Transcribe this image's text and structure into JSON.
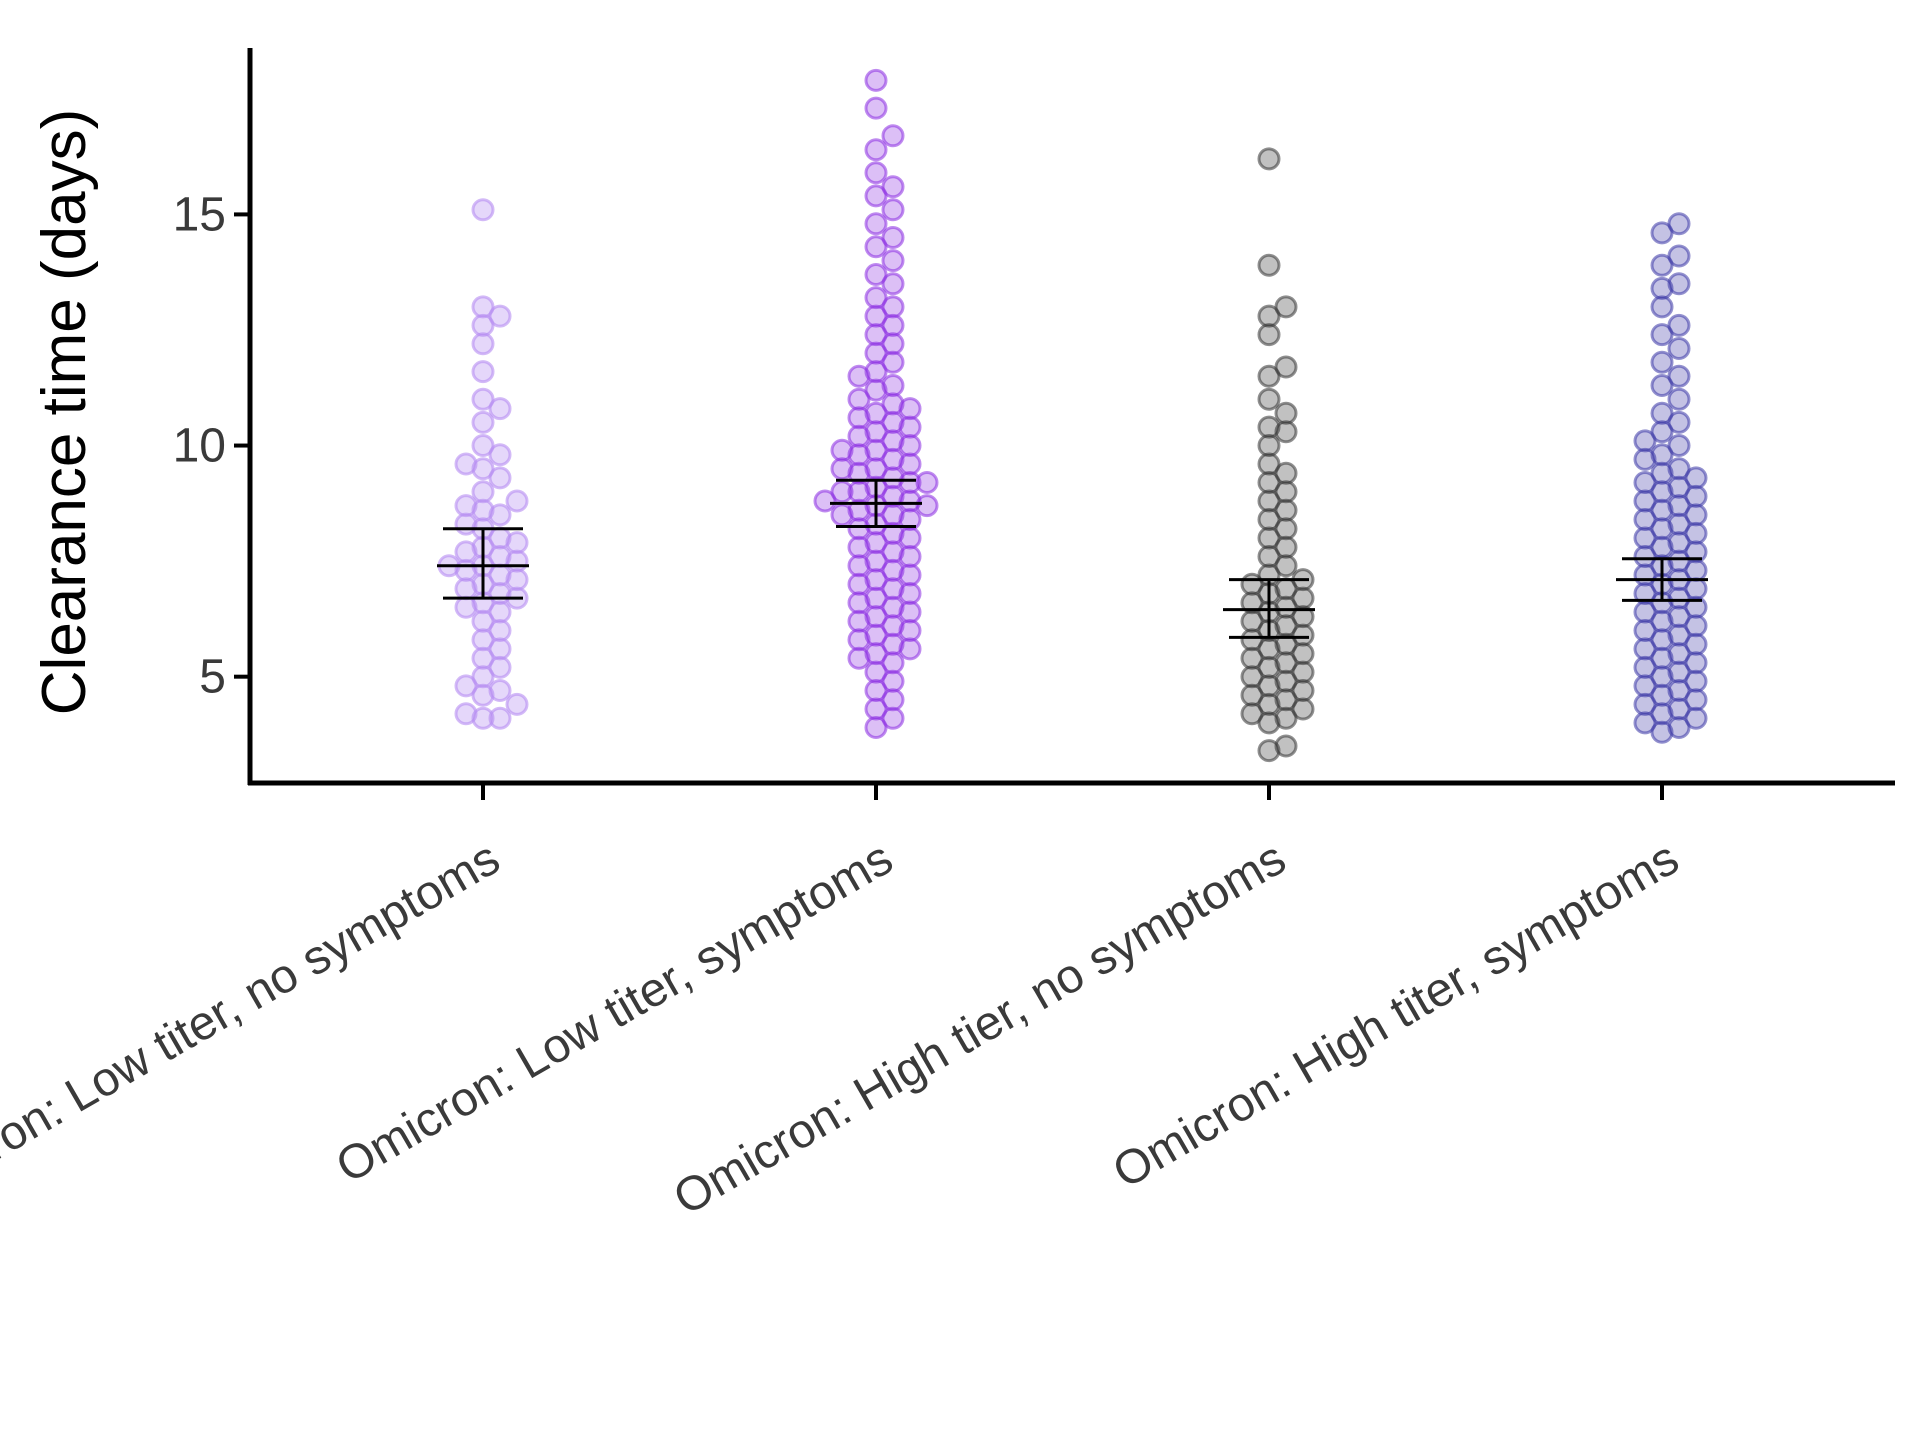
{
  "chart_data": {
    "type": "scatter",
    "subtype": "beeswarm-with-mean-ci",
    "title": "",
    "xlabel": "",
    "ylabel": "Clearance time (days)",
    "ylim": [
      2.7,
      18.6
    ],
    "yticks": [
      5,
      10,
      15
    ],
    "grid": false,
    "legend": "none",
    "categories": [
      "Omicron: Low titer, no symptoms",
      "Omicron: Low titer, symptoms",
      "Omicron: High tier, no symptoms",
      "Omicron: High titer, symptoms"
    ],
    "series": [
      {
        "color": "#b58cf2",
        "opacity": 0.35,
        "mean": 7.4,
        "ci_low": 6.7,
        "ci_high": 8.2,
        "values": [
          15.1,
          13.0,
          12.8,
          12.6,
          12.2,
          11.6,
          11.0,
          10.8,
          10.5,
          10.0,
          9.8,
          9.6,
          9.5,
          9.3,
          9.0,
          8.8,
          8.7,
          8.6,
          8.5,
          8.3,
          8.2,
          8.0,
          7.9,
          7.8,
          7.7,
          7.6,
          7.5,
          7.4,
          7.4,
          7.3,
          7.2,
          7.1,
          7.0,
          6.9,
          6.8,
          6.7,
          6.6,
          6.5,
          6.4,
          6.2,
          6.0,
          5.8,
          5.6,
          5.4,
          5.2,
          5.0,
          4.8,
          4.7,
          4.6,
          4.4,
          4.2,
          4.1,
          4.1
        ]
      },
      {
        "color": "#8a2be2",
        "opacity": 0.3,
        "mean": 8.75,
        "ci_low": 8.25,
        "ci_high": 9.25,
        "values": [
          17.9,
          17.3,
          16.7,
          16.4,
          15.9,
          15.6,
          15.4,
          15.1,
          14.8,
          14.5,
          14.3,
          14.0,
          13.7,
          13.5,
          13.2,
          13.0,
          12.8,
          12.6,
          12.4,
          12.2,
          12.0,
          11.8,
          11.6,
          11.5,
          11.3,
          11.2,
          11.0,
          10.9,
          10.8,
          10.7,
          10.6,
          10.5,
          10.4,
          10.3,
          10.2,
          10.1,
          10.0,
          9.9,
          9.9,
          9.8,
          9.7,
          9.6,
          9.5,
          9.5,
          9.4,
          9.3,
          9.2,
          9.2,
          9.1,
          9.0,
          9.0,
          8.9,
          8.8,
          8.8,
          8.7,
          8.7,
          8.6,
          8.5,
          8.5,
          8.4,
          8.3,
          8.2,
          8.1,
          8.0,
          7.9,
          7.8,
          7.7,
          7.6,
          7.5,
          7.4,
          7.3,
          7.2,
          7.1,
          7.0,
          6.9,
          6.8,
          6.7,
          6.6,
          6.5,
          6.4,
          6.3,
          6.2,
          6.1,
          6.0,
          5.9,
          5.8,
          5.7,
          5.6,
          5.5,
          5.4,
          5.3,
          5.1,
          4.9,
          4.7,
          4.5,
          4.3,
          4.1,
          3.9
        ]
      },
      {
        "color": "#333333",
        "opacity": 0.3,
        "mean": 6.45,
        "ci_low": 5.85,
        "ci_high": 7.1,
        "values": [
          16.2,
          13.9,
          13.0,
          12.8,
          12.4,
          11.7,
          11.5,
          11.0,
          10.7,
          10.4,
          10.3,
          10.0,
          9.6,
          9.4,
          9.2,
          9.0,
          8.8,
          8.6,
          8.4,
          8.2,
          8.0,
          7.8,
          7.6,
          7.4,
          7.2,
          7.1,
          7.0,
          6.9,
          6.8,
          6.7,
          6.6,
          6.5,
          6.4,
          6.3,
          6.2,
          6.1,
          6.0,
          5.9,
          5.8,
          5.7,
          5.6,
          5.5,
          5.4,
          5.3,
          5.2,
          5.1,
          5.0,
          4.9,
          4.8,
          4.7,
          4.6,
          4.5,
          4.4,
          4.3,
          4.2,
          4.1,
          4.0,
          3.5,
          3.4
        ]
      },
      {
        "color": "#3a36a6",
        "opacity": 0.3,
        "mean": 7.1,
        "ci_low": 6.65,
        "ci_high": 7.55,
        "values": [
          14.8,
          14.6,
          14.1,
          13.9,
          13.5,
          13.4,
          13.0,
          12.6,
          12.4,
          12.1,
          11.8,
          11.5,
          11.3,
          11.0,
          10.7,
          10.5,
          10.3,
          10.1,
          10.0,
          9.8,
          9.7,
          9.5,
          9.4,
          9.3,
          9.2,
          9.1,
          9.0,
          8.9,
          8.8,
          8.7,
          8.6,
          8.5,
          8.4,
          8.3,
          8.2,
          8.1,
          8.0,
          7.9,
          7.8,
          7.7,
          7.6,
          7.5,
          7.4,
          7.3,
          7.2,
          7.1,
          7.0,
          6.9,
          6.8,
          6.7,
          6.6,
          6.5,
          6.4,
          6.3,
          6.2,
          6.1,
          6.0,
          5.9,
          5.8,
          5.7,
          5.6,
          5.5,
          5.4,
          5.3,
          5.2,
          5.1,
          5.0,
          4.9,
          4.8,
          4.7,
          4.6,
          4.5,
          4.4,
          4.3,
          4.2,
          4.1,
          4.0,
          3.9,
          3.8
        ]
      }
    ]
  }
}
